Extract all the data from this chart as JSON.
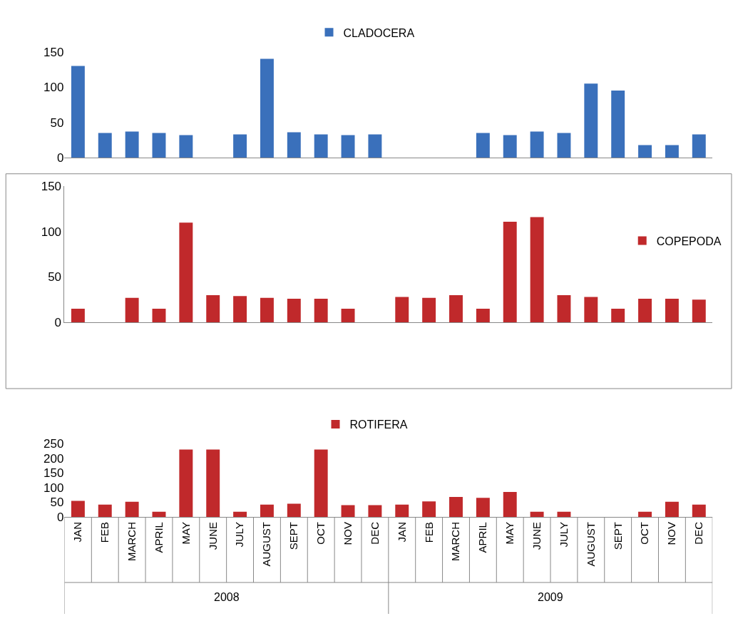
{
  "chart_data": [
    {
      "type": "bar",
      "categories": [
        null,
        null,
        null,
        null,
        null,
        null,
        null,
        null,
        null,
        null,
        null,
        null,
        null,
        null,
        null,
        null,
        null,
        null,
        null,
        null,
        null,
        null,
        null,
        null
      ],
      "series": [
        {
          "name": "CLADOCERA",
          "color": "#3a70bb",
          "values": [
            130,
            35,
            37,
            35,
            32,
            null,
            33,
            140,
            36,
            33,
            32,
            33,
            null,
            null,
            null,
            35,
            32,
            37,
            35,
            105,
            95,
            18,
            18,
            33
          ]
        }
      ],
      "ylim": [
        0,
        150
      ],
      "yticks": [
        0,
        50,
        100,
        150
      ],
      "tick_labels": "y",
      "legend": "top"
    },
    {
      "type": "bar",
      "categories": [
        null,
        null,
        null,
        null,
        null,
        null,
        null,
        null,
        null,
        null,
        null,
        null,
        null,
        null,
        null,
        null,
        null,
        null,
        null,
        null,
        null,
        null,
        null,
        null
      ],
      "series": [
        {
          "name": "COPEPODA",
          "color": "#c0292b",
          "values": [
            15,
            null,
            27,
            15,
            110,
            30,
            29,
            27,
            26,
            26,
            15,
            null,
            28,
            27,
            30,
            15,
            111,
            116,
            30,
            28,
            15,
            26,
            26,
            25
          ]
        }
      ],
      "ylim": [
        0,
        150
      ],
      "yticks": [
        0,
        50,
        100,
        150
      ],
      "tick_labels": "y",
      "legend": "right"
    },
    {
      "type": "bar",
      "categories": [
        "JAN",
        "FEB",
        "MARCH",
        "APRIL",
        "MAY",
        "JUNE",
        "JULY",
        "AUGUST",
        "SEPT",
        "OCT",
        "NOV",
        "DEC",
        "JAN",
        "FEB",
        "MARCH",
        "APRIL",
        "MAY",
        "JUNE",
        "JULY",
        "AUGUST",
        "SEPT",
        "OCT",
        "NOV",
        "DEC"
      ],
      "series": [
        {
          "name": "ROTIFERA",
          "color": "#c0292b",
          "values": [
            55,
            42,
            52,
            18,
            230,
            230,
            18,
            42,
            45,
            230,
            40,
            40,
            42,
            53,
            68,
            65,
            85,
            18,
            18,
            null,
            null,
            18,
            52,
            42
          ]
        }
      ],
      "ylim": [
        0,
        250
      ],
      "yticks": [
        0,
        50,
        100,
        150,
        200,
        250
      ],
      "legend": "top",
      "annotations": [
        "2008",
        "2009"
      ]
    }
  ]
}
